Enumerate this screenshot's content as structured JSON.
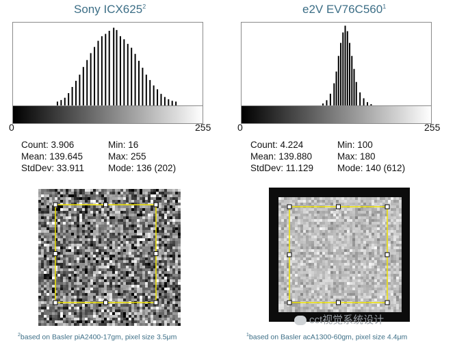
{
  "panels": [
    {
      "title": "Sony ICX625",
      "title_sup": "2",
      "axis_min_label": "0",
      "axis_max_label": "255",
      "stats": {
        "count": "Count: 3.906",
        "mean": "Mean: 139.645",
        "stddev": "StdDev: 33.911",
        "min": "Min: 16",
        "max": "Max: 255",
        "mode": "Mode: 136 (202)"
      },
      "footnote_sup": "2",
      "footnote": "based on Basler piA2400-17gm, pixel size 3.5μm"
    },
    {
      "title": "e2V EV76C560",
      "title_sup": "1",
      "axis_min_label": "0",
      "axis_max_label": "255",
      "stats": {
        "count": "Count: 4.224",
        "mean": "Mean: 139.880",
        "stddev": "StdDev: 11.129",
        "min": "Min: 100",
        "max": "Max: 180",
        "mode": "Mode: 140 (612)"
      },
      "footnote_sup": "1",
      "footnote": "based on Basler acA1300-60gm, pixel size 4.4μm"
    }
  ],
  "watermark": "cct视觉系统设计",
  "colors": {
    "title": "#3c6e86",
    "roi": "#f2e600",
    "bars": "#000000"
  },
  "chart_data": [
    {
      "type": "bar",
      "title": "Sony ICX625",
      "xlim": [
        0,
        255
      ],
      "ylim": [
        0,
        210
      ],
      "x": [
        60,
        65,
        70,
        75,
        80,
        85,
        90,
        95,
        100,
        105,
        110,
        115,
        120,
        125,
        130,
        136,
        140,
        145,
        150,
        155,
        160,
        165,
        170,
        175,
        180,
        185,
        190,
        195,
        200,
        205,
        210,
        215,
        220
      ],
      "values": [
        10,
        14,
        20,
        32,
        48,
        64,
        80,
        100,
        118,
        136,
        152,
        168,
        180,
        186,
        194,
        202,
        196,
        180,
        172,
        160,
        150,
        134,
        116,
        98,
        80,
        66,
        52,
        42,
        30,
        22,
        16,
        12,
        10
      ]
    },
    {
      "type": "bar",
      "title": "e2V EV76C560",
      "xlim": [
        0,
        255
      ],
      "ylim": [
        0,
        620
      ],
      "x": [
        110,
        115,
        120,
        125,
        128,
        131,
        134,
        137,
        140,
        143,
        146,
        149,
        152,
        155,
        160,
        165,
        170,
        175
      ],
      "values": [
        15,
        40,
        90,
        170,
        260,
        380,
        480,
        560,
        612,
        570,
        480,
        380,
        280,
        180,
        100,
        55,
        25,
        10
      ]
    }
  ]
}
